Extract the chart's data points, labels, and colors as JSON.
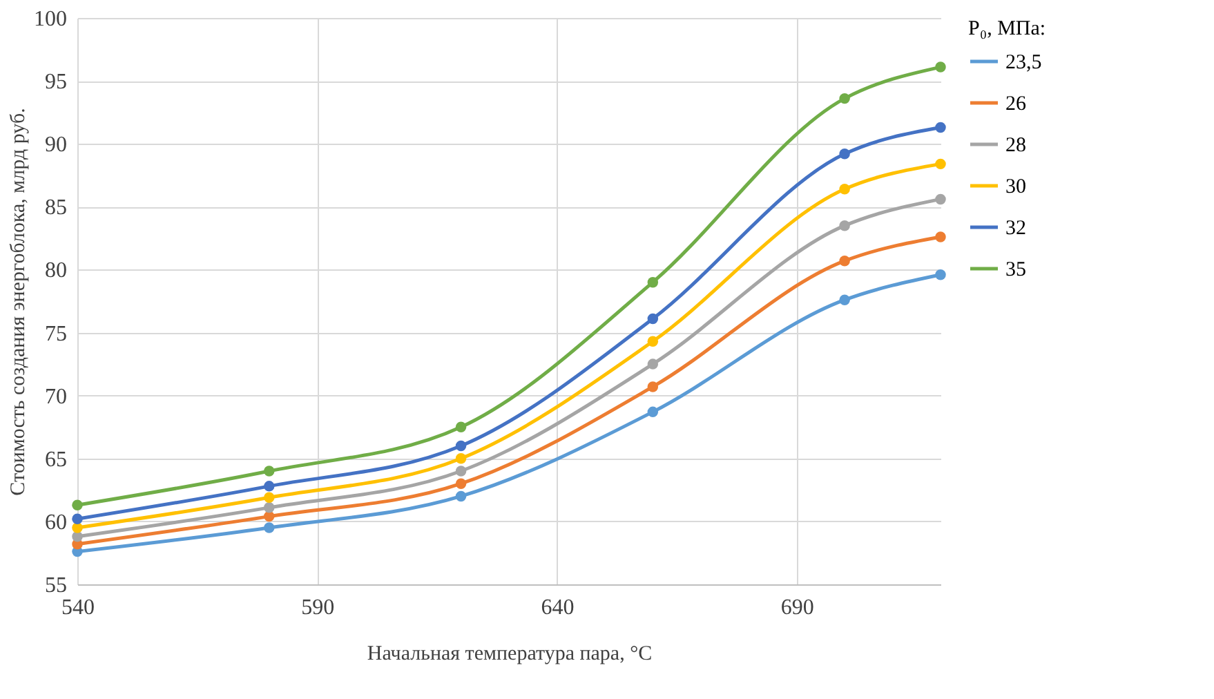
{
  "chart_data": {
    "type": "line",
    "xlabel": "Начальная температура пара, °C",
    "ylabel": "Стоимость создания энергоблока, млрд руб.",
    "legend_title": "P₀, МПа:",
    "x": [
      540,
      580,
      620,
      660,
      700,
      720
    ],
    "xlim": [
      540,
      720
    ],
    "xticks": [
      540,
      590,
      640,
      690
    ],
    "ylim": [
      55,
      100
    ],
    "yticks": [
      55,
      60,
      65,
      70,
      75,
      80,
      85,
      90,
      95,
      100
    ],
    "grid": true,
    "legend": "right",
    "marker": "circle",
    "line_style": "solid",
    "series": [
      {
        "name": "23,5",
        "color": "#5b9bd5",
        "values": [
          57.6,
          59.5,
          62.0,
          68.7,
          77.6,
          79.6
        ]
      },
      {
        "name": "26",
        "color": "#ed7d31",
        "values": [
          58.2,
          60.4,
          63.0,
          70.7,
          80.7,
          82.6
        ]
      },
      {
        "name": "28",
        "color": "#a5a5a5",
        "values": [
          58.8,
          61.1,
          64.0,
          72.5,
          83.5,
          85.6
        ]
      },
      {
        "name": "30",
        "color": "#ffc000",
        "values": [
          59.5,
          61.9,
          65.0,
          74.3,
          86.4,
          88.4
        ]
      },
      {
        "name": "32",
        "color": "#4472c4",
        "values": [
          60.2,
          62.8,
          66.0,
          76.1,
          89.2,
          91.3
        ]
      },
      {
        "name": "35",
        "color": "#70ad47",
        "values": [
          61.3,
          64.0,
          67.5,
          79.0,
          93.6,
          96.1
        ]
      }
    ]
  }
}
